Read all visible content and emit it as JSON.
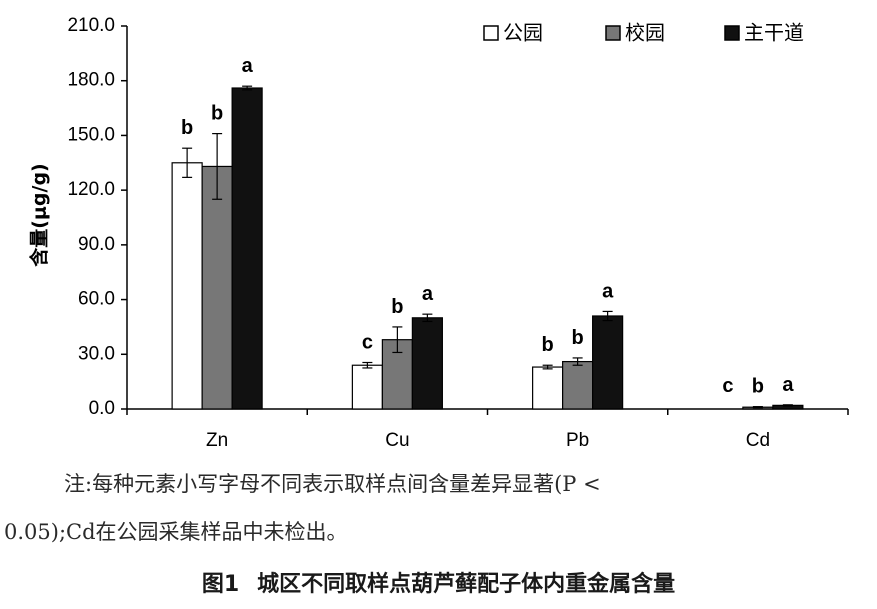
{
  "chart_data": {
    "type": "bar",
    "categories": [
      "Zn",
      "Cu",
      "Pb",
      "Cd"
    ],
    "ylabel": "含量(μg/g)",
    "ylim": [
      0,
      210
    ],
    "yticks": [
      "0.0",
      "30.0",
      "60.0",
      "90.0",
      "120.0",
      "150.0",
      "180.0",
      "210.0"
    ],
    "grid": false,
    "legend_position": "top-right",
    "series": [
      {
        "name": "公园",
        "color": "#ffffff",
        "values": [
          135,
          24,
          23,
          null
        ],
        "errors": [
          8,
          1.5,
          1,
          null
        ],
        "labels": [
          "b",
          "c",
          "b",
          "c"
        ]
      },
      {
        "name": "校园",
        "color": "#777777",
        "values": [
          133,
          38,
          26,
          1
        ],
        "errors": [
          18,
          7,
          2,
          0.3
        ],
        "labels": [
          "b",
          "b",
          "b",
          "b"
        ]
      },
      {
        "name": "主干道",
        "color": "#111111",
        "values": [
          176,
          50,
          51,
          2
        ],
        "errors": [
          1,
          2,
          2.5,
          0.3
        ],
        "labels": [
          "a",
          "a",
          "a",
          "a"
        ]
      }
    ]
  },
  "note": {
    "line1": "注:每种元素小写字母不同表示取样点间含量差异显著(P <",
    "line2": "0.05);Cd在公园采集样品中未检出。"
  },
  "caption": {
    "number": "图1",
    "title": "城区不同取样点葫芦藓配子体内重金属含量"
  }
}
